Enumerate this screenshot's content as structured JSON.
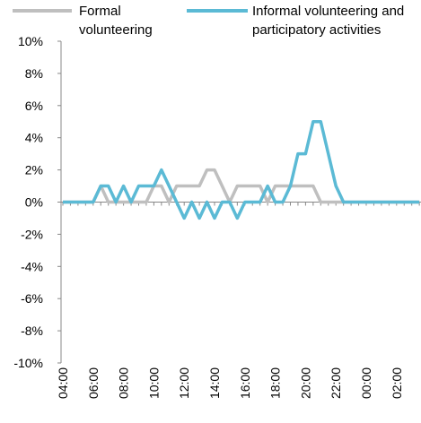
{
  "chart_data": {
    "type": "line",
    "categories": [
      "04:00",
      null,
      null,
      null,
      "06:00",
      null,
      null,
      null,
      "08:00",
      null,
      null,
      null,
      "10:00",
      null,
      null,
      null,
      "12:00",
      null,
      null,
      null,
      "14:00",
      null,
      null,
      null,
      "16:00",
      null,
      null,
      null,
      "18:00",
      null,
      null,
      null,
      "20:00",
      null,
      null,
      null,
      "22:00",
      null,
      null,
      null,
      "00:00",
      null,
      null,
      null,
      "02:00",
      null,
      null,
      null
    ],
    "series": [
      {
        "name": "Formal volunteering",
        "color": "#bfbfbf",
        "values": [
          0,
          0,
          0,
          0,
          0,
          1,
          0,
          0,
          0,
          0,
          0,
          0,
          1,
          1,
          0,
          1,
          1,
          1,
          1,
          2,
          2,
          1,
          0,
          1,
          1,
          1,
          1,
          0,
          1,
          1,
          1,
          1,
          1,
          1,
          0,
          0,
          0,
          0,
          0,
          0,
          0,
          0,
          0,
          0,
          0,
          0,
          0,
          0
        ]
      },
      {
        "name": "Informal volunteering and participatory activities",
        "color": "#5bbad5",
        "values": [
          0,
          0,
          0,
          0,
          0,
          1,
          1,
          0,
          1,
          0,
          1,
          1,
          1,
          2,
          1,
          0,
          -1,
          0,
          -1,
          0,
          -1,
          0,
          0,
          -1,
          0,
          0,
          0,
          1,
          0,
          0,
          1,
          3,
          3,
          5,
          5,
          3,
          1,
          0,
          0,
          0,
          0,
          0,
          0,
          0,
          0,
          0,
          0,
          0
        ]
      }
    ],
    "ylim": [
      -10,
      10
    ],
    "yticks": [
      {
        "value": -10,
        "label": "-10%"
      },
      {
        "value": -8,
        "label": "-8%"
      },
      {
        "value": -6,
        "label": "-6%"
      },
      {
        "value": -4,
        "label": "-4%"
      },
      {
        "value": -2,
        "label": "-2%"
      },
      {
        "value": 0,
        "label": "0%"
      },
      {
        "value": 2,
        "label": "2%"
      },
      {
        "value": 4,
        "label": "4%"
      },
      {
        "value": 6,
        "label": "6%"
      },
      {
        "value": 8,
        "label": "8%"
      },
      {
        "value": 10,
        "label": "10%"
      }
    ],
    "legend": "top"
  }
}
